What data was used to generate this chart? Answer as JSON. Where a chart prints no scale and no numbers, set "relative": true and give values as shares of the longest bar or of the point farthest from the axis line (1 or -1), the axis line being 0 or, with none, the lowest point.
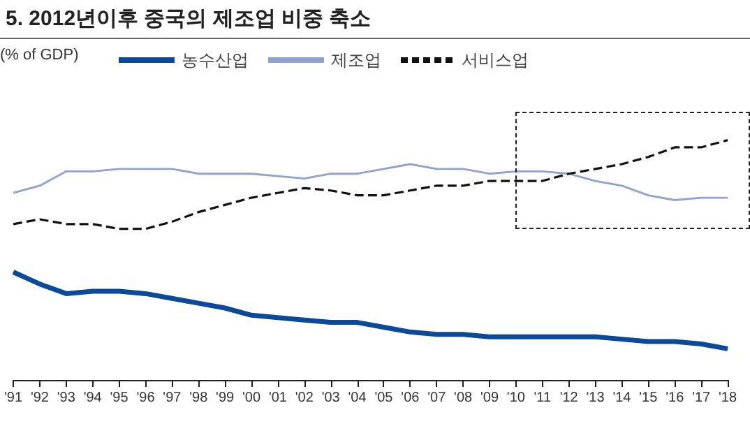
{
  "chart_data": {
    "type": "line",
    "title": "5. 2012년이후 중국의 제조업 비중 축소",
    "ylabel": "(% of GDP)",
    "relative": true,
    "legend": "top",
    "marker": "none",
    "grid": false,
    "categories": [
      "'91",
      "'92",
      "'93",
      "'94",
      "'95",
      "'96",
      "'97",
      "'98",
      "'99",
      "'00",
      "'01",
      "'02",
      "'03",
      "'04",
      "'05",
      "'06",
      "'07",
      "'08",
      "'09",
      "'10",
      "'11",
      "'12",
      "'13",
      "'14",
      "'15",
      "'16",
      "'17",
      "'18"
    ],
    "series": [
      {
        "name": "농수산업",
        "color": "#0b4a99",
        "line_style": "solid",
        "values": [
          0.45,
          0.4,
          0.36,
          0.37,
          0.37,
          0.36,
          0.34,
          0.32,
          0.3,
          0.27,
          0.26,
          0.25,
          0.24,
          0.24,
          0.22,
          0.2,
          0.19,
          0.19,
          0.18,
          0.18,
          0.18,
          0.18,
          0.18,
          0.17,
          0.16,
          0.16,
          0.15,
          0.13
        ]
      },
      {
        "name": "제조업",
        "color": "#8fa3cc",
        "line_style": "solid",
        "values": [
          0.78,
          0.81,
          0.87,
          0.87,
          0.88,
          0.88,
          0.88,
          0.86,
          0.86,
          0.86,
          0.85,
          0.84,
          0.86,
          0.86,
          0.88,
          0.9,
          0.88,
          0.88,
          0.86,
          0.87,
          0.87,
          0.86,
          0.83,
          0.81,
          0.77,
          0.75,
          0.76,
          0.76
        ]
      },
      {
        "name": "서비스업",
        "color": "#111111",
        "line_style": "dashed",
        "values": [
          0.65,
          0.67,
          0.65,
          0.65,
          0.63,
          0.63,
          0.66,
          0.7,
          0.73,
          0.76,
          0.78,
          0.8,
          0.79,
          0.77,
          0.77,
          0.79,
          0.81,
          0.81,
          0.83,
          0.83,
          0.83,
          0.86,
          0.88,
          0.9,
          0.93,
          0.97,
          0.97,
          1
        ]
      }
    ]
  }
}
